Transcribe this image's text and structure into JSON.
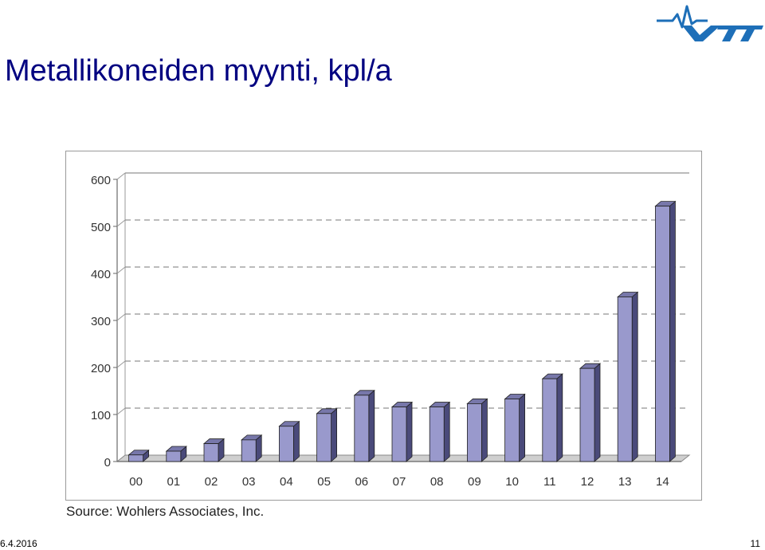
{
  "slide": {
    "title": "Metallikoneiden myynti, kpl/a",
    "logo_text": "VTT",
    "source": "Source: Wohlers Associates, Inc.",
    "date": "6.4.2016",
    "page_number": "11"
  },
  "colors": {
    "title": "#000080",
    "logo": "#1e6fb8",
    "bar_front": "#9999cc",
    "bar_side": "#4a4a7a",
    "bar_top": "#7777aa",
    "grid": "#777777"
  },
  "chart_data": {
    "type": "bar",
    "title": "",
    "xlabel": "",
    "ylabel": "",
    "categories": [
      "00",
      "01",
      "02",
      "03",
      "04",
      "05",
      "06",
      "07",
      "08",
      "09",
      "10",
      "11",
      "12",
      "13",
      "14"
    ],
    "values": [
      14,
      22,
      38,
      46,
      75,
      102,
      141,
      116,
      116,
      123,
      133,
      176,
      198,
      350,
      543
    ],
    "ylim": [
      0,
      600
    ],
    "yticks": [
      "0",
      "100",
      "200",
      "300",
      "400",
      "500",
      "600"
    ],
    "grid": true,
    "gridline_style": "dashed",
    "legend": "none"
  }
}
